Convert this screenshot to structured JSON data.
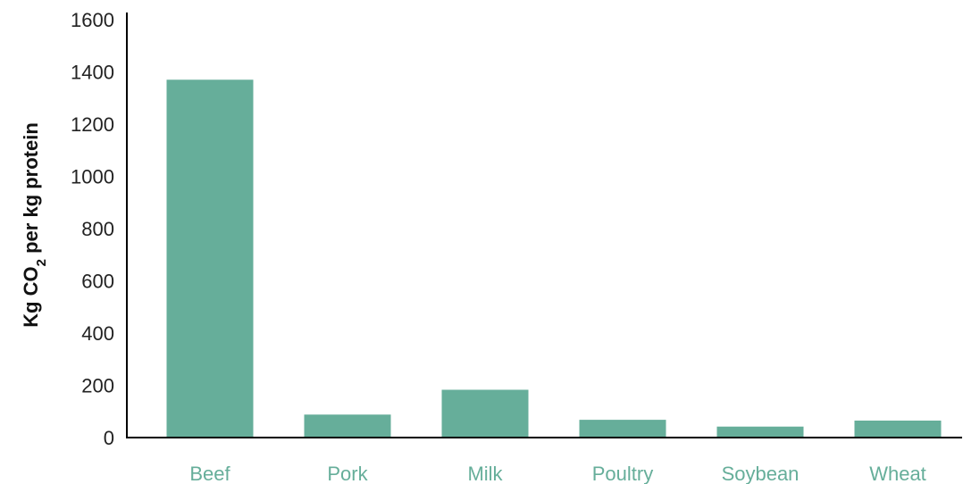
{
  "chart_data": {
    "type": "bar",
    "categories": [
      "Beef",
      "Pork",
      "Milk",
      "Poultry",
      "Soybean",
      "Wheat"
    ],
    "values": [
      1370,
      88,
      183,
      68,
      42,
      65
    ],
    "ylabel": {
      "main": "Kg CO",
      "subscript": "2",
      "rest": " per kg protein"
    },
    "ylim": [
      0,
      1600
    ],
    "yticks": [
      "0",
      "200",
      "400",
      "600",
      "800",
      "1000",
      "1200",
      "1400",
      "1600"
    ],
    "grid": false,
    "legend": "none",
    "colors": {
      "bar": "#66ae9a",
      "category_label": "#66ae9a",
      "axis": "#000000"
    }
  }
}
